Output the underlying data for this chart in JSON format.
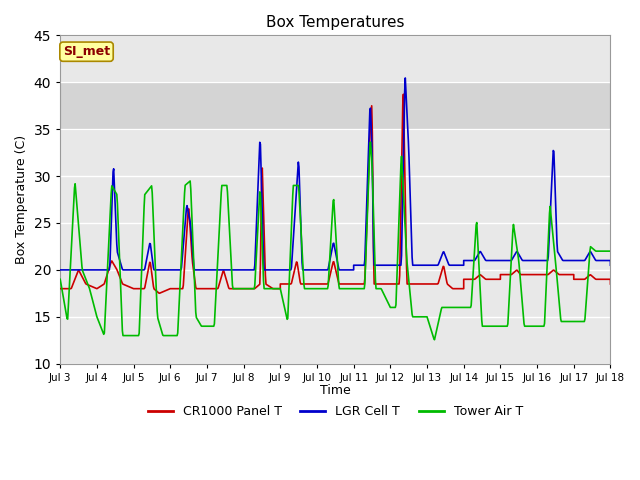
{
  "title": "Box Temperatures",
  "ylabel": "Box Temperature (C)",
  "xlabel": "Time",
  "annotation": "SI_met",
  "ylim": [
    10,
    45
  ],
  "xlim": [
    0,
    15
  ],
  "x_tick_labels": [
    "Jul 3",
    "Jul 4",
    "Jul 5",
    "Jul 6",
    "Jul 7",
    "Jul 8",
    "Jul 9",
    "Jul 10",
    "Jul 11",
    "Jul 12",
    "Jul 13",
    "Jul 14",
    "Jul 15",
    "Jul 16",
    "Jul 17",
    "Jul 18"
  ],
  "shaded_band_lo": 35,
  "shaded_band_hi": 40,
  "background_color": "#ffffff",
  "plot_bg_color": "#e8e8e8",
  "grid_color": "#ffffff",
  "cr1000_color": "#cc0000",
  "lgr_color": "#0000cc",
  "tower_color": "#00bb00",
  "lw": 1.2
}
